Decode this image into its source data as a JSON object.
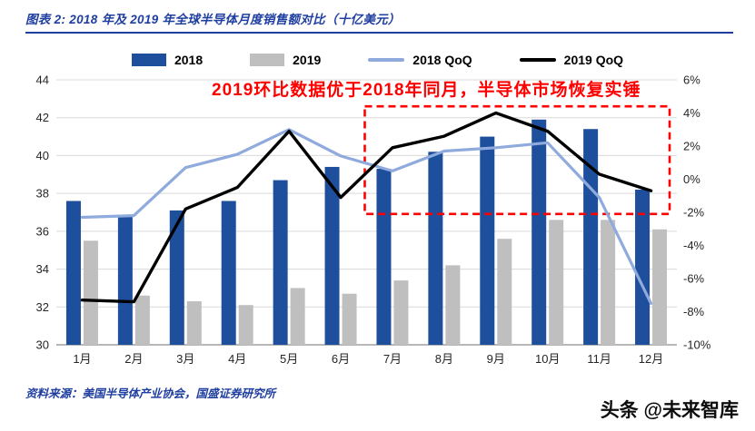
{
  "header": {
    "title": "图表 2: 2018 年及 2019 年全球半导体月度销售额对比（十亿美元）"
  },
  "annotation": {
    "text": "2019环比数据优于2018年同月，半导体市场恢复实锤",
    "color": "#FF0000"
  },
  "legend": {
    "items": [
      {
        "label": "2018",
        "type": "bar",
        "color": "#1E4F9C"
      },
      {
        "label": "2019",
        "type": "bar",
        "color": "#BFBFBF"
      },
      {
        "label": "2018 QoQ",
        "type": "line",
        "color": "#8FAADC"
      },
      {
        "label": "2019 QoQ",
        "type": "line",
        "color": "#000000"
      }
    ]
  },
  "chart_data": {
    "type": "bar",
    "subtype": "bar-line-combo",
    "title": "2018 年及 2019 年全球半导体月度销售额对比（十亿美元）",
    "categories": [
      "1月",
      "2月",
      "3月",
      "4月",
      "5月",
      "6月",
      "7月",
      "8月",
      "9月",
      "10月",
      "11月",
      "12月"
    ],
    "series": [
      {
        "name": "2018",
        "kind": "bar",
        "axis": "left",
        "color": "#1E4F9C",
        "values": [
          37.6,
          36.8,
          37.1,
          37.6,
          38.7,
          39.4,
          39.3,
          40.2,
          41.0,
          41.9,
          41.4,
          38.2
        ]
      },
      {
        "name": "2019",
        "kind": "bar",
        "axis": "left",
        "color": "#BFBFBF",
        "values": [
          35.5,
          32.6,
          32.3,
          32.1,
          33.0,
          32.7,
          33.4,
          34.2,
          35.6,
          36.6,
          36.6,
          36.1
        ]
      },
      {
        "name": "2018 QoQ",
        "kind": "line",
        "axis": "right",
        "color": "#8FAADC",
        "values": [
          -2.3,
          -2.2,
          0.7,
          1.5,
          3.0,
          1.4,
          0.5,
          1.7,
          1.9,
          2.2,
          -1.1,
          -7.5
        ]
      },
      {
        "name": "2019 QoQ",
        "kind": "line",
        "axis": "right",
        "color": "#000000",
        "values": [
          -7.3,
          -7.4,
          -1.8,
          -0.5,
          2.9,
          -1.1,
          1.9,
          2.6,
          4.0,
          2.9,
          0.3,
          -0.7
        ]
      }
    ],
    "left_axis": {
      "min": 30,
      "max": 44,
      "step": 2,
      "labels": [
        "44",
        "42",
        "40",
        "38",
        "36",
        "34",
        "32",
        "30"
      ]
    },
    "right_axis": {
      "min": -10,
      "max": 6,
      "step": 2,
      "labels": [
        "6%",
        "4%",
        "2%",
        "0%",
        "-2%",
        "-4%",
        "-6%",
        "-8%",
        "-10%"
      ]
    },
    "grid": true,
    "legend_position": "top",
    "highlight_box": {
      "color": "#FF0000",
      "from_month_index": 6,
      "to_month_index": 12,
      "top_pct": 4.4,
      "bottom_pct": -2.1
    }
  },
  "footer": {
    "source": "资料来源：美国半导体产业协会，国盛证券研究所",
    "watermark": "头条 @未来智库"
  }
}
